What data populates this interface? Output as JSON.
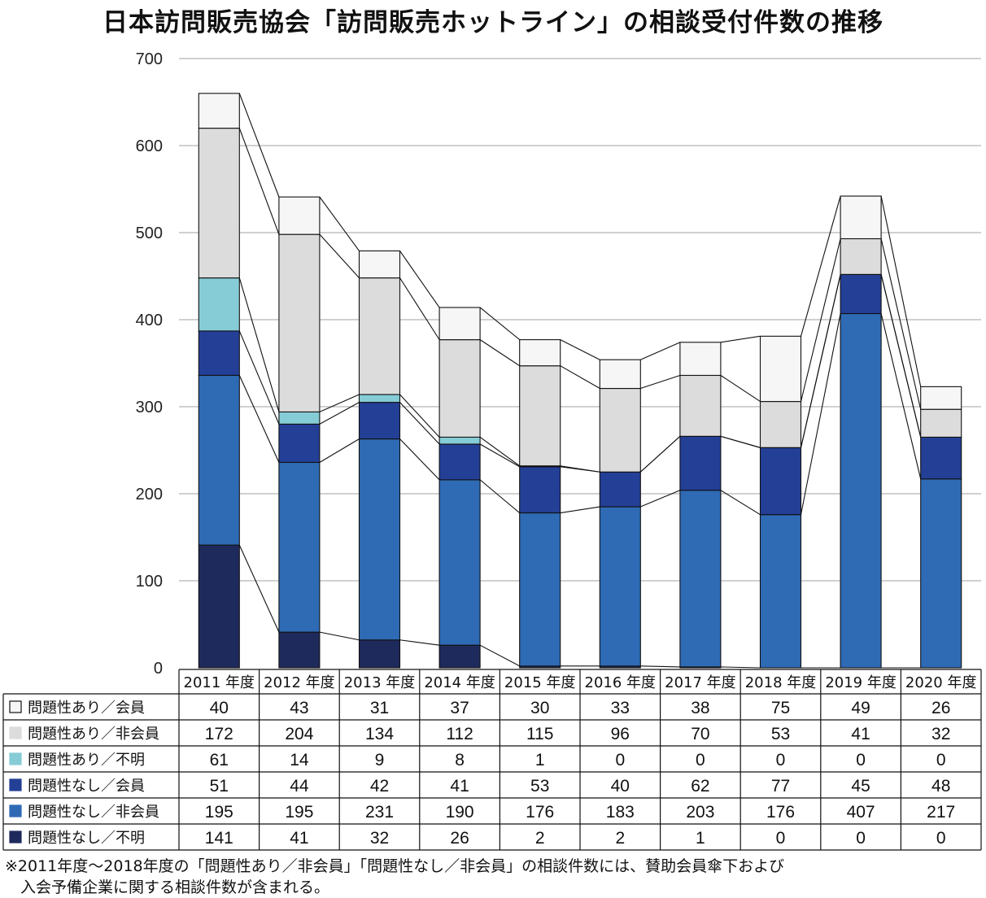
{
  "chart_data": {
    "type": "bar",
    "stacked": true,
    "title": "日本訪問販売協会「訪問販売ホットライン」の相談受付件数の推移",
    "categories": [
      "2011 年度",
      "2012 年度",
      "2013 年度",
      "2014 年度",
      "2015 年度",
      "2016 年度",
      "2017 年度",
      "2018 年度",
      "2019 年度",
      "2020 年度"
    ],
    "ylim": [
      0,
      700
    ],
    "yticks": [
      "0",
      "100",
      "200",
      "300",
      "400",
      "500",
      "600",
      "700"
    ],
    "grid": true,
    "legend_placement": "table-left",
    "series_bottom_to_top": [
      {
        "name": "問題性なし／不明",
        "color": "#1f2a5c",
        "values": [
          141,
          41,
          32,
          26,
          2,
          2,
          1,
          0,
          0,
          0
        ]
      },
      {
        "name": "問題性なし／非会員",
        "color": "#2f6bb5",
        "values": [
          195,
          195,
          231,
          190,
          176,
          183,
          203,
          176,
          407,
          217
        ]
      },
      {
        "name": "問題性なし／会員",
        "color": "#243f96",
        "values": [
          51,
          44,
          42,
          41,
          53,
          40,
          62,
          77,
          45,
          48
        ]
      },
      {
        "name": "問題性あり／不明",
        "color": "#86ccd6",
        "values": [
          61,
          14,
          9,
          8,
          1,
          0,
          0,
          0,
          0,
          0
        ]
      },
      {
        "name": "問題性あり／非会員",
        "color": "#dcdcdc",
        "values": [
          172,
          204,
          134,
          112,
          115,
          96,
          70,
          53,
          41,
          32
        ]
      },
      {
        "name": "問題性あり／会員",
        "color": "#f6f6f6",
        "values": [
          40,
          43,
          31,
          37,
          30,
          33,
          38,
          75,
          49,
          26
        ]
      }
    ],
    "table_row_order": [
      "問題性あり／会員",
      "問題性あり／非会員",
      "問題性あり／不明",
      "問題性なし／会員",
      "問題性なし／非会員",
      "問題性なし／不明"
    ]
  },
  "footnote": {
    "line1": "※2011年度～2018年度の「問題性あり／非会員」「問題性なし／非会員」の相談件数には、賛助会員傘下および",
    "line2": "　入会予備企業に関する相談件数が含まれる。"
  }
}
